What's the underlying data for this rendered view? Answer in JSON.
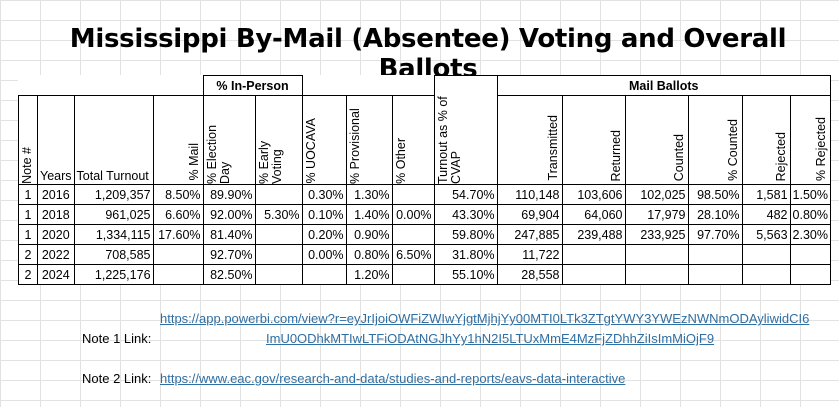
{
  "title": "Mississippi By-Mail (Absentee) Voting and Overall Ballots",
  "headers": {
    "in_person_group": "% In-Person",
    "mail_group": "Mail Ballots",
    "note": "Note #",
    "years": "Years",
    "total_turnout": "Total Turnout",
    "pct_mail": "% Mail",
    "pct_election_day": "% Election Day",
    "pct_early": "% Early Voting",
    "pct_uocava": "% UOCAVA",
    "pct_provisional": "% Provisional",
    "pct_other": "% Other",
    "turnout_cvap": "Turnout as % of CVAP",
    "transmitted": "Transmitted",
    "returned": "Returned",
    "counted": "Counted",
    "pct_counted": "% Counted",
    "rejected": "Rejected",
    "pct_rejected": "% Rejected"
  },
  "rows": [
    [
      "1",
      "2016",
      "1,209,357",
      "8.50%",
      "89.90%",
      "",
      "0.30%",
      "1.30%",
      "",
      "54.70%",
      "110,148",
      "103,606",
      "102,025",
      "98.50%",
      "1,581",
      "1.50%"
    ],
    [
      "1",
      "2018",
      "961,025",
      "6.60%",
      "92.00%",
      "5.30%",
      "0.10%",
      "1.40%",
      "0.00%",
      "43.30%",
      "69,904",
      "64,060",
      "17,979",
      "28.10%",
      "482",
      "0.80%"
    ],
    [
      "1",
      "2020",
      "1,334,115",
      "17.60%",
      "81.40%",
      "",
      "0.20%",
      "0.90%",
      "",
      "59.80%",
      "247,885",
      "239,488",
      "233,925",
      "97.70%",
      "5,563",
      "2.30%"
    ],
    [
      "2",
      "2022",
      "708,585",
      "",
      "92.70%",
      "",
      "0.00%",
      "0.80%",
      "6.50%",
      "31.80%",
      "11,722",
      "",
      "",
      "",
      "",
      ""
    ],
    [
      "2",
      "2024",
      "1,225,176",
      "",
      "82.50%",
      "",
      "",
      "1.20%",
      "",
      "55.10%",
      "28,558",
      "",
      "",
      "",
      "",
      ""
    ]
  ],
  "notes": {
    "note1_label": "Note 1 Link:",
    "note1_line1": "https://app.powerbi.com/view?r=eyJrIjoiOWFiZWIwYjgtMjhjYy00MTI0LTk3ZTgtYWY3YWEzNWNmODAyliwidCI6",
    "note1_line2": "ImU0ODhkMTIwLTFiODAtNGJhYy1hN2I5LTUxMmE4MzFjZDhhZiIsImMiOjF9",
    "note2_label": "Note 2 Link:",
    "note2_link": "https://www.eac.gov/research-and-data/studies-and-reports/eavs-data-interactive"
  }
}
